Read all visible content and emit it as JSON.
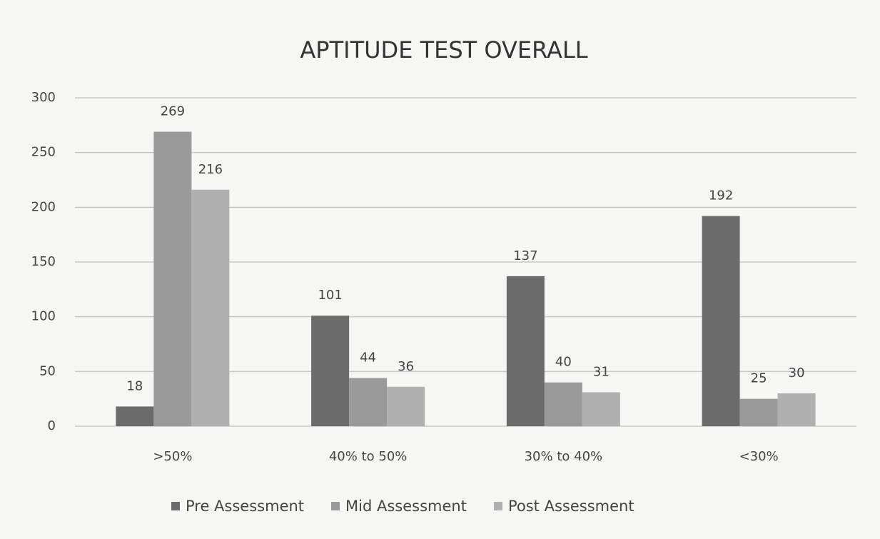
{
  "chart_data": {
    "type": "bar",
    "title": "APTITUDE TEST OVERALL",
    "categories": [
      ">50%",
      "40% to 50%",
      "30% to 40%",
      "<30%"
    ],
    "series": [
      {
        "name": "Pre Assessment",
        "color": "#6b6b6b",
        "values": [
          18,
          101,
          137,
          192
        ]
      },
      {
        "name": "Mid Assessment",
        "color": "#9a9a9a",
        "values": [
          269,
          44,
          40,
          25
        ]
      },
      {
        "name": "Post Assessment",
        "color": "#b0b0b0",
        "values": [
          216,
          36,
          31,
          30
        ]
      }
    ],
    "ylim": [
      0,
      300
    ],
    "yticks": [
      0,
      50,
      100,
      150,
      200,
      250,
      300
    ],
    "grid": true,
    "legend": "bottom"
  }
}
